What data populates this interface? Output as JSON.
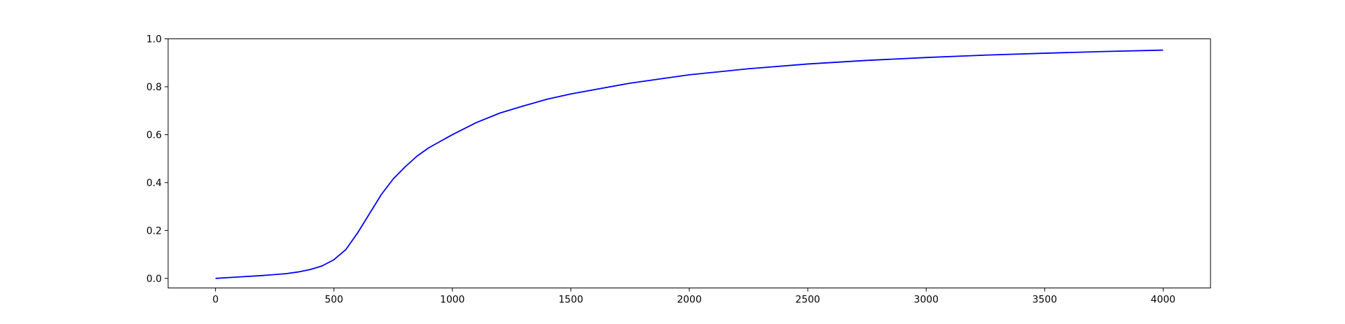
{
  "chart_data": {
    "type": "line",
    "title": "",
    "xlabel": "",
    "ylabel": "",
    "xlim": [
      -200,
      4200
    ],
    "ylim": [
      -0.04,
      1.0
    ],
    "x_ticks": [
      0,
      500,
      1000,
      1500,
      2000,
      2500,
      3000,
      3500,
      4000
    ],
    "y_ticks": [
      0.0,
      0.2,
      0.4,
      0.6,
      0.8,
      1.0
    ],
    "x_tick_labels": [
      "0",
      "500",
      "1000",
      "1500",
      "2000",
      "2500",
      "3000",
      "3500",
      "4000"
    ],
    "y_tick_labels": [
      "0.0",
      "0.2",
      "0.4",
      "0.6",
      "0.8",
      "1.0"
    ],
    "grid": false,
    "legend": "none",
    "series": [
      {
        "color": "#0000ff",
        "x": [
          0,
          100,
          200,
          300,
          350,
          400,
          450,
          500,
          550,
          600,
          650,
          700,
          750,
          800,
          850,
          900,
          1000,
          1100,
          1200,
          1300,
          1400,
          1500,
          1750,
          2000,
          2250,
          2500,
          2750,
          3000,
          3250,
          3500,
          3750,
          4000
        ],
        "y": [
          0.0,
          0.006,
          0.012,
          0.02,
          0.027,
          0.037,
          0.052,
          0.078,
          0.12,
          0.19,
          0.27,
          0.35,
          0.415,
          0.465,
          0.51,
          0.545,
          0.6,
          0.65,
          0.69,
          0.72,
          0.748,
          0.77,
          0.815,
          0.85,
          0.875,
          0.895,
          0.91,
          0.922,
          0.932,
          0.94,
          0.947,
          0.953
        ]
      }
    ]
  }
}
